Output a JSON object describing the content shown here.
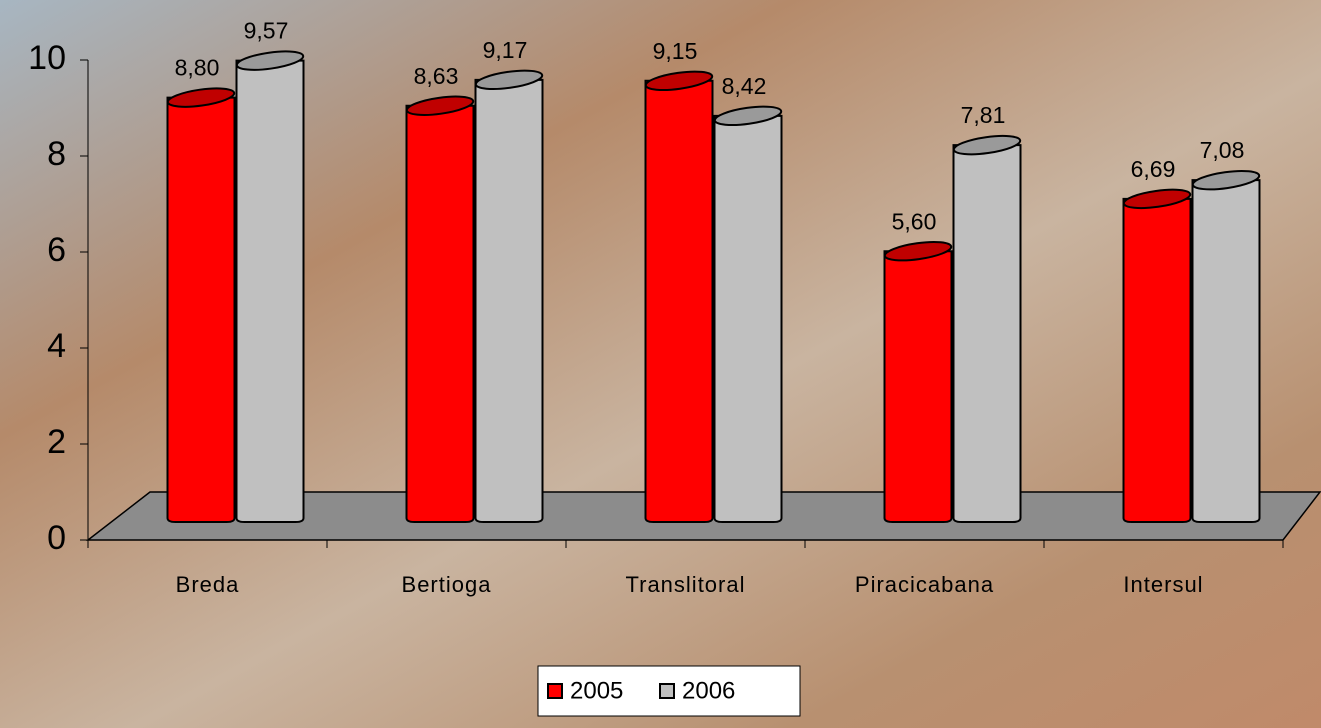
{
  "chart_data": {
    "type": "bar3d",
    "categories": [
      "Breda",
      "Bertioga",
      "Translitoral",
      "Piracicabana",
      "Intersul"
    ],
    "series": [
      {
        "name": "2005",
        "color": "#ff0000",
        "values": [
          8.8,
          8.63,
          9.15,
          5.6,
          6.69
        ],
        "value_labels": [
          "8,80",
          "8,63",
          "9,15",
          "5,60",
          "6,69"
        ]
      },
      {
        "name": "2006",
        "color": "#c0c0c0",
        "values": [
          9.57,
          9.17,
          8.42,
          7.81,
          7.08
        ],
        "value_labels": [
          "9,57",
          "9,17",
          "8,42",
          "7,81",
          "7,08"
        ]
      }
    ],
    "ylim": [
      0,
      10
    ],
    "yticks": [
      0,
      2,
      4,
      6,
      8,
      10
    ]
  }
}
